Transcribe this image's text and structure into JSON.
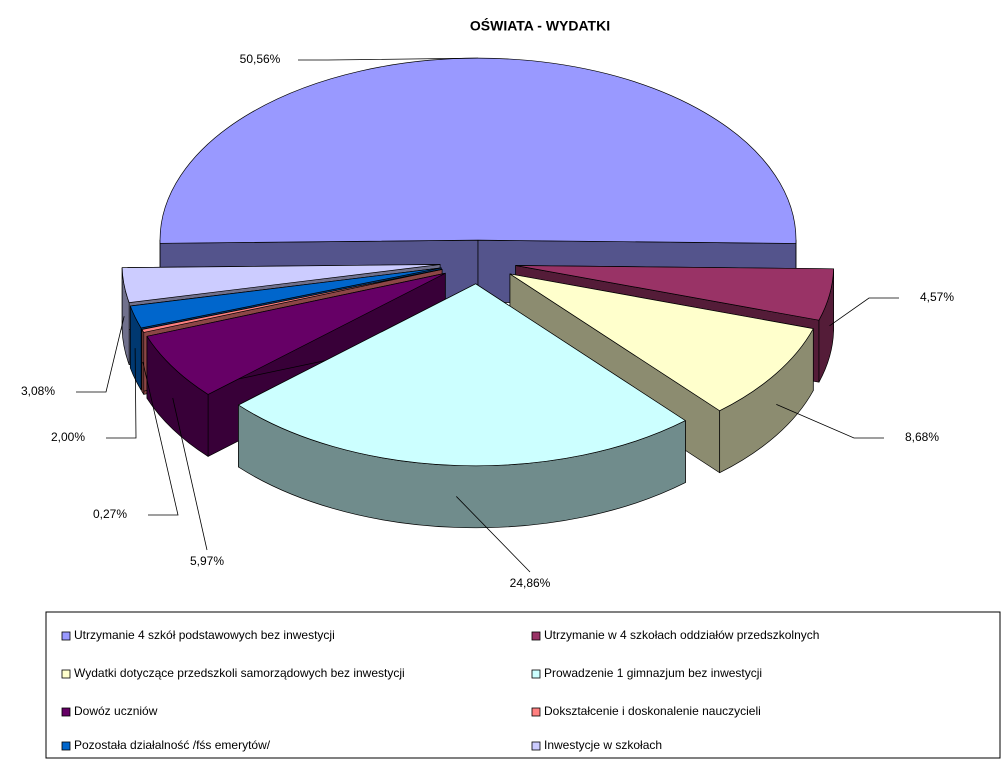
{
  "chart_data": {
    "type": "pie3d",
    "title": "OŚWIATA - WYDATKI",
    "categories": [
      "Utrzymanie 4 szkół podstawowych bez inwestycji",
      "Utrzymanie w 4 szkołach oddziałów przedszkolnych",
      "Wydatki dotyczące przedszkoli samorządowych bez inwestycji",
      "Prowadzenie 1 gimnazjum bez inwestycji",
      "Dowóz uczniów",
      "Dokształcenie i doskonalenie nauczycieli",
      "Pozostała działalność /fśs emerytów/",
      "Inwestycje w szkołach"
    ],
    "values": [
      50.56,
      4.57,
      8.68,
      24.86,
      5.97,
      0.27,
      2.0,
      3.08
    ],
    "value_labels": [
      "50,56%",
      "4,57%",
      "8,68%",
      "24,86%",
      "5,97%",
      "0,27%",
      "2,00%",
      "3,08%"
    ],
    "colors": [
      "#9999ff",
      "#993366",
      "#ffffcc",
      "#ccffff",
      "#660066",
      "#ff8080",
      "#0066cc",
      "#ccccff"
    ],
    "legend": "bottom"
  }
}
